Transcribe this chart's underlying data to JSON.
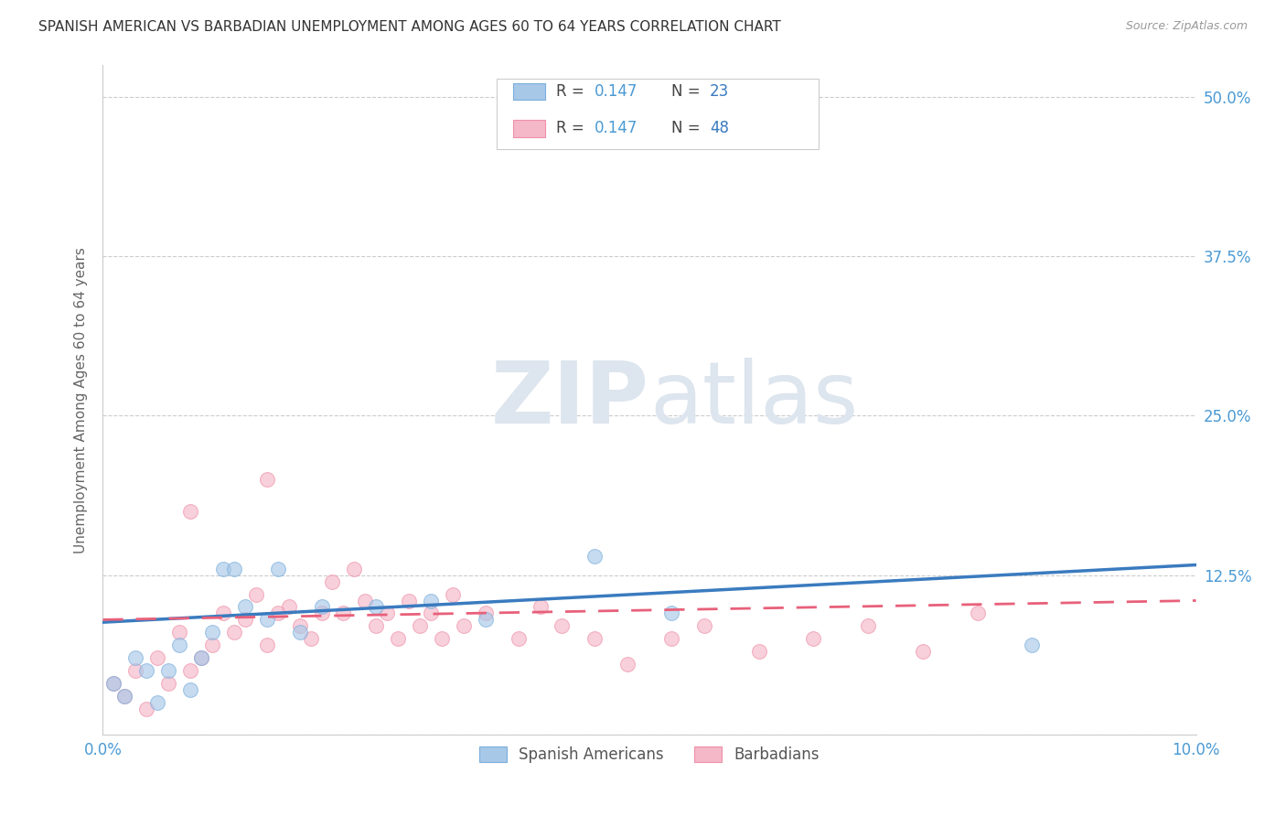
{
  "title": "SPANISH AMERICAN VS BARBADIAN UNEMPLOYMENT AMONG AGES 60 TO 64 YEARS CORRELATION CHART",
  "source": "Source: ZipAtlas.com",
  "ylabel": "Unemployment Among Ages 60 to 64 years",
  "xlim": [
    0.0,
    0.1
  ],
  "ylim": [
    0.0,
    0.525
  ],
  "yticks": [
    0.0,
    0.125,
    0.25,
    0.375,
    0.5
  ],
  "ytick_labels": [
    "",
    "12.5%",
    "25.0%",
    "37.5%",
    "50.0%"
  ],
  "legend_label1": "Spanish Americans",
  "legend_label2": "Barbadians",
  "blue_fill": "#a8c8e8",
  "blue_edge": "#7aaedc",
  "pink_fill": "#f4b8c8",
  "pink_edge": "#f090a8",
  "blue_line": "#3a7bbf",
  "pink_line": "#e8607a",
  "r_val_color": "#4a9ad4",
  "n_val_color": "#3a7bbf",
  "text_color": "#444444",
  "grid_color": "#cccccc",
  "watermark_color": "#e8ecf0",
  "title_color": "#333333",
  "source_color": "#999999",
  "ytick_color": "#4a9ad4",
  "xtick_color": "#4a9ad4",
  "blue_line_y0": 0.088,
  "blue_line_y1": 0.133,
  "pink_line_y0": 0.09,
  "pink_line_y1": 0.105,
  "sa_x": [
    0.001,
    0.002,
    0.003,
    0.004,
    0.005,
    0.006,
    0.007,
    0.008,
    0.009,
    0.01,
    0.011,
    0.012,
    0.013,
    0.015,
    0.016,
    0.018,
    0.02,
    0.025,
    0.03,
    0.035,
    0.045,
    0.052,
    0.085
  ],
  "sa_y": [
    0.04,
    0.03,
    0.06,
    0.05,
    0.025,
    0.05,
    0.07,
    0.035,
    0.06,
    0.08,
    0.13,
    0.13,
    0.1,
    0.09,
    0.13,
    0.08,
    0.1,
    0.1,
    0.105,
    0.09,
    0.14,
    0.095,
    0.07
  ],
  "bb_x": [
    0.001,
    0.002,
    0.003,
    0.004,
    0.005,
    0.006,
    0.007,
    0.008,
    0.009,
    0.01,
    0.011,
    0.012,
    0.013,
    0.014,
    0.015,
    0.016,
    0.017,
    0.018,
    0.019,
    0.02,
    0.021,
    0.022,
    0.023,
    0.024,
    0.025,
    0.026,
    0.027,
    0.028,
    0.029,
    0.03,
    0.031,
    0.032,
    0.033,
    0.035,
    0.038,
    0.04,
    0.042,
    0.045,
    0.048,
    0.052,
    0.055,
    0.06,
    0.065,
    0.07,
    0.075,
    0.08,
    0.008,
    0.015
  ],
  "bb_y": [
    0.04,
    0.03,
    0.05,
    0.02,
    0.06,
    0.04,
    0.08,
    0.05,
    0.06,
    0.07,
    0.095,
    0.08,
    0.09,
    0.11,
    0.07,
    0.095,
    0.1,
    0.085,
    0.075,
    0.095,
    0.12,
    0.095,
    0.13,
    0.105,
    0.085,
    0.095,
    0.075,
    0.105,
    0.085,
    0.095,
    0.075,
    0.11,
    0.085,
    0.095,
    0.075,
    0.1,
    0.085,
    0.075,
    0.055,
    0.075,
    0.085,
    0.065,
    0.075,
    0.085,
    0.065,
    0.095,
    0.175,
    0.2
  ]
}
